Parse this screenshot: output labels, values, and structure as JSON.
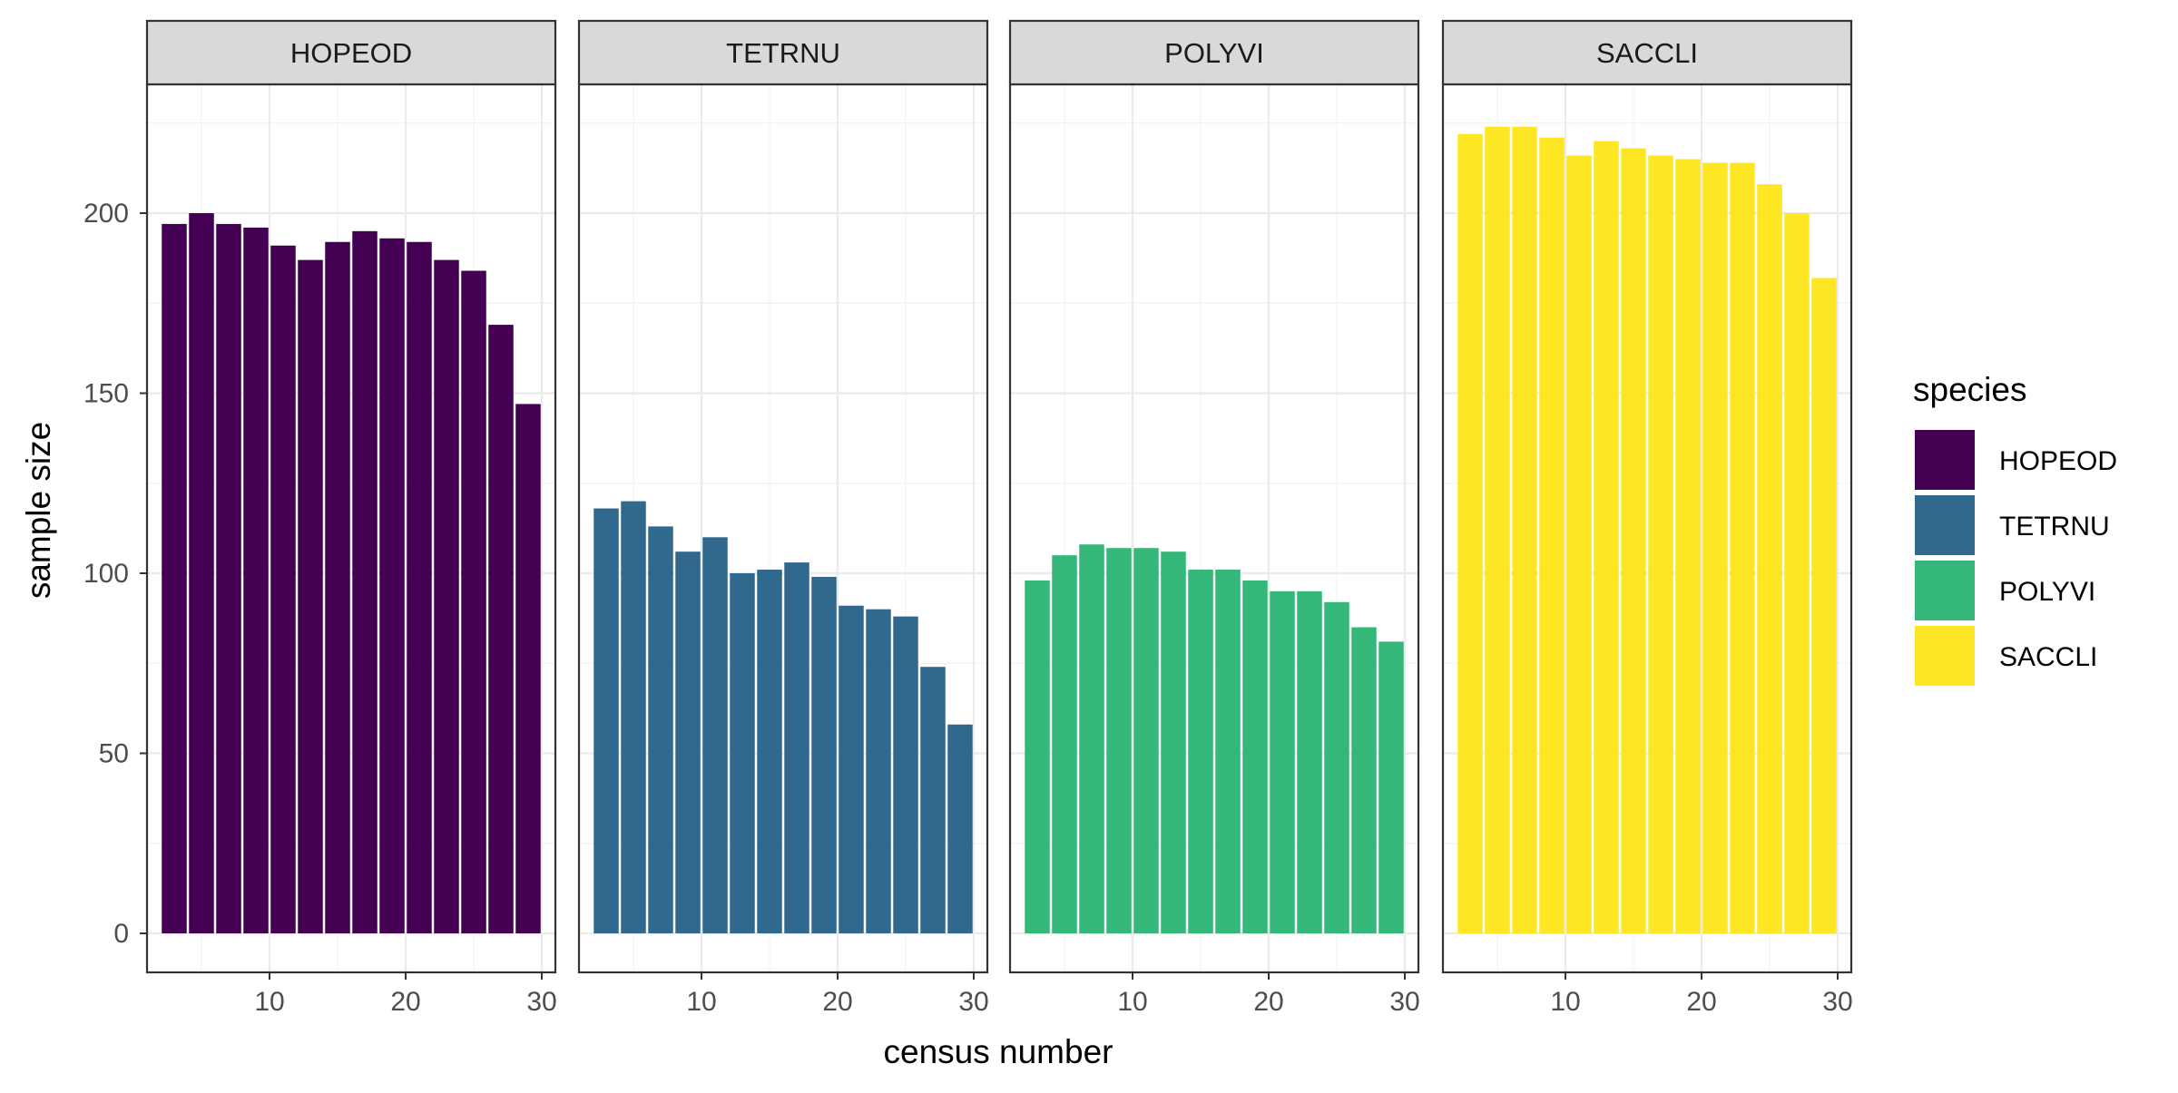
{
  "chart_data": {
    "type": "bar",
    "layout": "faceted by species, four panels in one row",
    "xlabel": "census number",
    "ylabel": "sample size",
    "xlim": [
      1,
      31
    ],
    "ylim": [
      0,
      235
    ],
    "x_ticks": [
      10,
      20,
      30
    ],
    "y_ticks": [
      0,
      50,
      100,
      150,
      200
    ],
    "grid": true,
    "legend": {
      "title": "species",
      "placement": "right",
      "entries": [
        {
          "label": "HOPEOD",
          "color": "#440154"
        },
        {
          "label": "TETRNU",
          "color": "#31688E"
        },
        {
          "label": "POLYVI",
          "color": "#35B779"
        },
        {
          "label": "SACCLI",
          "color": "#FDE725"
        }
      ]
    },
    "x": [
      3,
      5,
      7,
      9,
      11,
      13,
      15,
      17,
      19,
      21,
      23,
      25,
      27,
      29
    ],
    "series": [
      {
        "name": "HOPEOD",
        "color": "#440154",
        "values": [
          197,
          200,
          197,
          196,
          191,
          187,
          192,
          195,
          193,
          192,
          187,
          184,
          169,
          147
        ]
      },
      {
        "name": "TETRNU",
        "color": "#31688E",
        "values": [
          118,
          120,
          113,
          106,
          110,
          100,
          101,
          103,
          99,
          91,
          90,
          88,
          74,
          58
        ]
      },
      {
        "name": "POLYVI",
        "color": "#35B779",
        "values": [
          98,
          105,
          108,
          107,
          107,
          106,
          101,
          101,
          98,
          95,
          95,
          92,
          85,
          81
        ]
      },
      {
        "name": "SACCLI",
        "color": "#FDE725",
        "values": [
          222,
          224,
          224,
          221,
          216,
          220,
          218,
          216,
          215,
          214,
          214,
          208,
          200,
          182
        ]
      }
    ]
  }
}
